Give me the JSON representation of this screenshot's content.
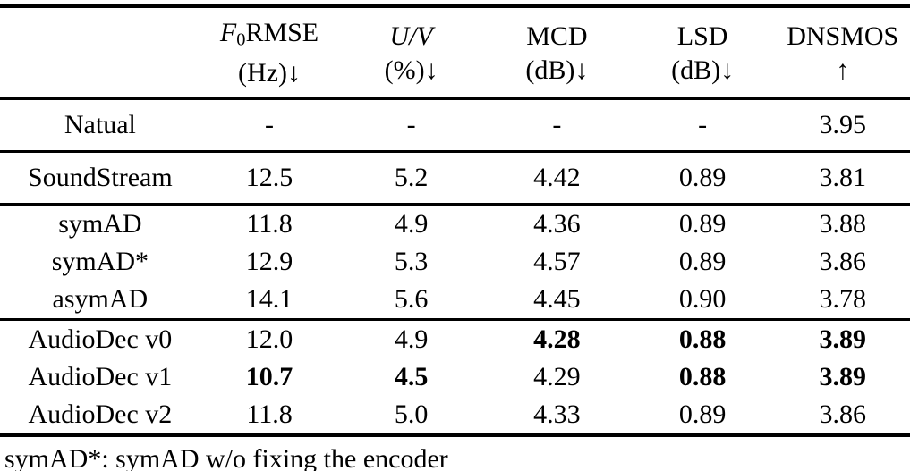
{
  "table": {
    "header": {
      "columns": [
        {
          "name": "f0-rmse",
          "parts": [
            {
              "t": "F",
              "style": "italic"
            },
            {
              "t": "0",
              "style": "sub"
            },
            {
              "t": "RMSE",
              "style": "normal"
            }
          ],
          "unit": "(Hz)↓"
        },
        {
          "name": "uv",
          "parts": [
            {
              "t": "U/V",
              "style": "italic"
            }
          ],
          "unit": "(%)↓"
        },
        {
          "name": "mcd",
          "parts": [
            {
              "t": "MCD",
              "style": "normal"
            }
          ],
          "unit": "(dB)↓"
        },
        {
          "name": "lsd",
          "parts": [
            {
              "t": "LSD",
              "style": "normal"
            }
          ],
          "unit": "(dB)↓"
        },
        {
          "name": "dnsmos",
          "parts": [
            {
              "t": "DNSMOS",
              "style": "normal"
            }
          ],
          "unit": "↑"
        }
      ]
    },
    "groups": [
      {
        "rows": [
          {
            "label": "Natual",
            "values": [
              {
                "v": "-"
              },
              {
                "v": "-"
              },
              {
                "v": "-"
              },
              {
                "v": "-"
              },
              {
                "v": "3.95"
              }
            ]
          }
        ]
      },
      {
        "rows": [
          {
            "label": "SoundStream",
            "values": [
              {
                "v": "12.5"
              },
              {
                "v": "5.2"
              },
              {
                "v": "4.42"
              },
              {
                "v": "0.89"
              },
              {
                "v": "3.81"
              }
            ]
          }
        ]
      },
      {
        "rows": [
          {
            "label": "symAD",
            "values": [
              {
                "v": "11.8"
              },
              {
                "v": "4.9"
              },
              {
                "v": "4.36"
              },
              {
                "v": "0.89"
              },
              {
                "v": "3.88"
              }
            ]
          },
          {
            "label": "symAD*",
            "values": [
              {
                "v": "12.9"
              },
              {
                "v": "5.3"
              },
              {
                "v": "4.57"
              },
              {
                "v": "0.89"
              },
              {
                "v": "3.86"
              }
            ]
          },
          {
            "label": "asymAD",
            "values": [
              {
                "v": "14.1"
              },
              {
                "v": "5.6"
              },
              {
                "v": "4.45"
              },
              {
                "v": "0.90"
              },
              {
                "v": "3.78"
              }
            ]
          }
        ]
      },
      {
        "rows": [
          {
            "label": "AudioDec v0",
            "values": [
              {
                "v": "12.0"
              },
              {
                "v": "4.9"
              },
              {
                "v": "4.28",
                "bold": true
              },
              {
                "v": "0.88",
                "bold": true
              },
              {
                "v": "3.89",
                "bold": true
              }
            ]
          },
          {
            "label": "AudioDec v1",
            "values": [
              {
                "v": "10.7",
                "bold": true
              },
              {
                "v": "4.5",
                "bold": true
              },
              {
                "v": "4.29"
              },
              {
                "v": "0.88",
                "bold": true
              },
              {
                "v": "3.89",
                "bold": true
              }
            ]
          },
          {
            "label": "AudioDec v2",
            "values": [
              {
                "v": "11.8"
              },
              {
                "v": "5.0"
              },
              {
                "v": "4.33"
              },
              {
                "v": "0.89"
              },
              {
                "v": "3.86"
              }
            ]
          }
        ]
      }
    ],
    "footnote": "symAD*: symAD w/o fixing the encoder"
  }
}
